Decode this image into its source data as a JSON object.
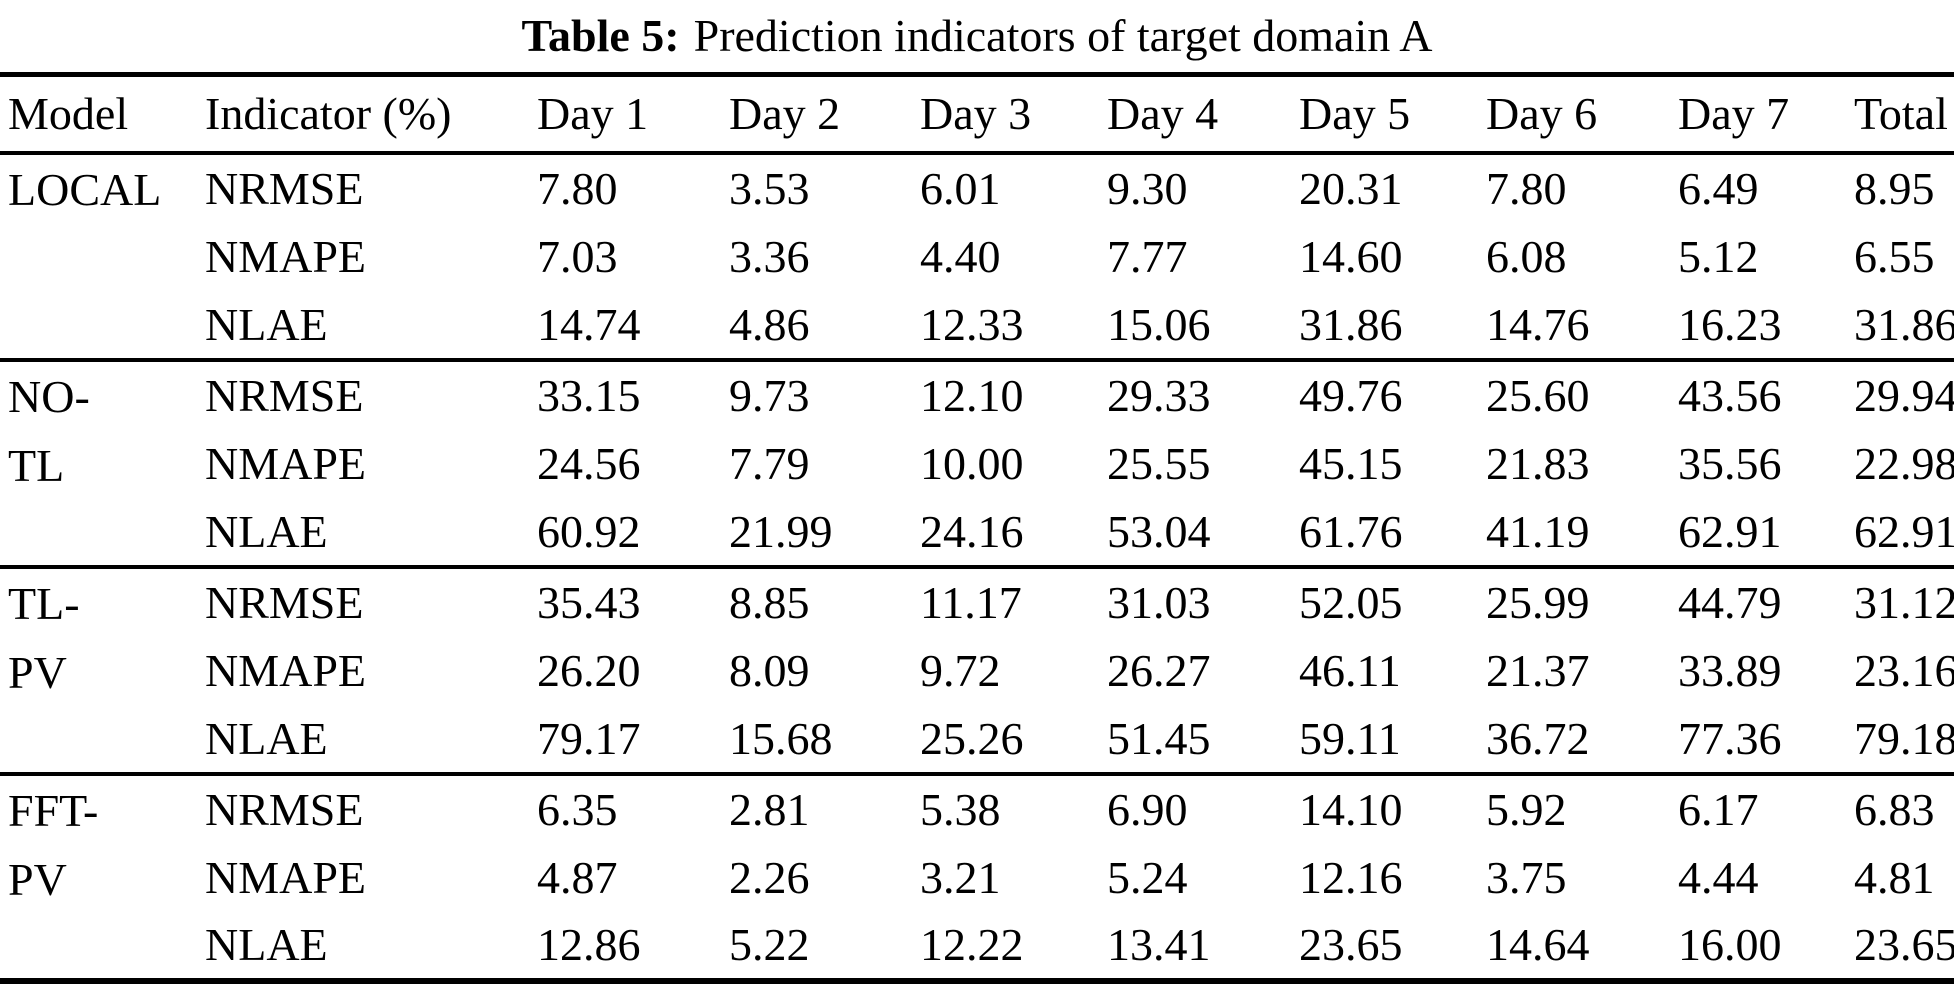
{
  "title": {
    "label": "Table 5:",
    "text": "Prediction indicators of target domain A"
  },
  "table": {
    "columns": [
      "Model",
      "Indicator (%)",
      "Day 1",
      "Day 2",
      "Day 3",
      "Day 4",
      "Day 5",
      "Day 6",
      "Day 7",
      "Total"
    ],
    "groups": [
      {
        "model": "LOCAL",
        "rows": [
          {
            "indicator": "NRMSE",
            "values": [
              "7.80",
              "3.53",
              "6.01",
              "9.30",
              "20.31",
              "7.80",
              "6.49",
              "8.95"
            ]
          },
          {
            "indicator": "NMAPE",
            "values": [
              "7.03",
              "3.36",
              "4.40",
              "7.77",
              "14.60",
              "6.08",
              "5.12",
              "6.55"
            ]
          },
          {
            "indicator": "NLAE",
            "values": [
              "14.74",
              "4.86",
              "12.33",
              "15.06",
              "31.86",
              "14.76",
              "16.23",
              "31.86"
            ]
          }
        ]
      },
      {
        "model": "NO-\nTL",
        "rows": [
          {
            "indicator": "NRMSE",
            "values": [
              "33.15",
              "9.73",
              "12.10",
              "29.33",
              "49.76",
              "25.60",
              "43.56",
              "29.94"
            ]
          },
          {
            "indicator": "NMAPE",
            "values": [
              "24.56",
              "7.79",
              "10.00",
              "25.55",
              "45.15",
              "21.83",
              "35.56",
              "22.98"
            ]
          },
          {
            "indicator": "NLAE",
            "values": [
              "60.92",
              "21.99",
              "24.16",
              "53.04",
              "61.76",
              "41.19",
              "62.91",
              "62.91"
            ]
          }
        ]
      },
      {
        "model": "TL-\nPV",
        "rows": [
          {
            "indicator": "NRMSE",
            "values": [
              "35.43",
              "8.85",
              "11.17",
              "31.03",
              "52.05",
              "25.99",
              "44.79",
              "31.12"
            ]
          },
          {
            "indicator": "NMAPE",
            "values": [
              "26.20",
              "8.09",
              "9.72",
              "26.27",
              "46.11",
              "21.37",
              "33.89",
              "23.16"
            ]
          },
          {
            "indicator": "NLAE",
            "values": [
              "79.17",
              "15.68",
              "25.26",
              "51.45",
              "59.11",
              "36.72",
              "77.36",
              "79.18"
            ]
          }
        ]
      },
      {
        "model": "FFT-\nPV",
        "rows": [
          {
            "indicator": "NRMSE",
            "values": [
              "6.35",
              "2.81",
              "5.38",
              "6.90",
              "14.10",
              "5.92",
              "6.17",
              "6.83"
            ]
          },
          {
            "indicator": "NMAPE",
            "values": [
              "4.87",
              "2.26",
              "3.21",
              "5.24",
              "12.16",
              "3.75",
              "4.44",
              "4.81"
            ]
          },
          {
            "indicator": "NLAE",
            "values": [
              "12.86",
              "5.22",
              "12.22",
              "13.41",
              "23.65",
              "14.64",
              "16.00",
              "23.65"
            ]
          }
        ]
      }
    ]
  }
}
